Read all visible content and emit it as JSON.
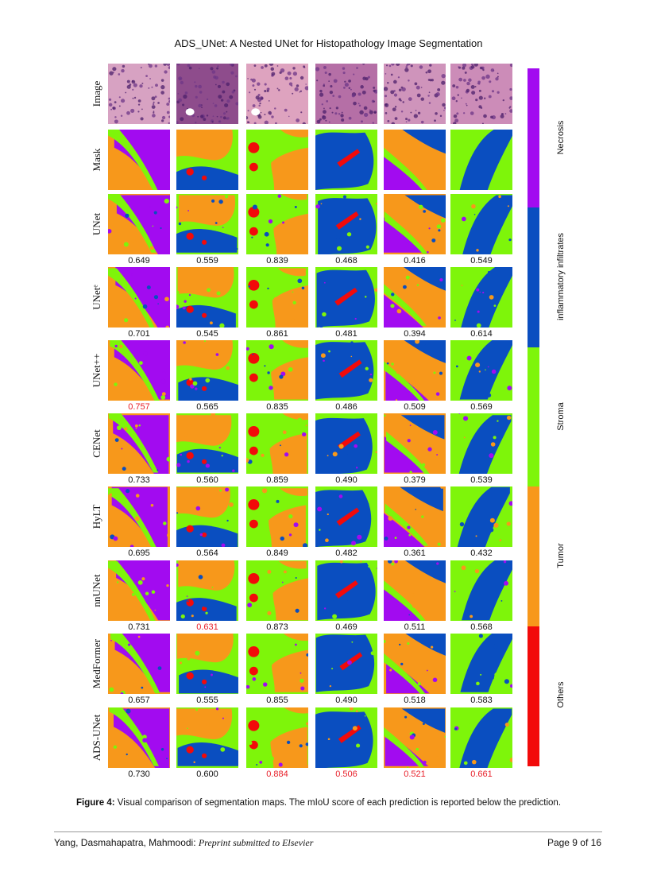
{
  "header": {
    "title": "ADS_UNet: A Nested UNet for Histopathology Image Segmentation"
  },
  "rows": [
    {
      "label": "Image",
      "type": "image"
    },
    {
      "label": "Mask",
      "type": "mask"
    },
    {
      "label": "UNet",
      "type": "pred",
      "scores": [
        "0.649",
        "0.559",
        "0.839",
        "0.468",
        "0.416",
        "0.549"
      ],
      "best": []
    },
    {
      "label": "UNetᵉ",
      "type": "pred",
      "scores": [
        "0.701",
        "0.545",
        "0.861",
        "0.481",
        "0.394",
        "0.614"
      ],
      "best": []
    },
    {
      "label": "UNet++",
      "type": "pred",
      "scores": [
        "0.757",
        "0.565",
        "0.835",
        "0.486",
        "0.509",
        "0.569"
      ],
      "best": [
        0
      ]
    },
    {
      "label": "CENet",
      "type": "pred",
      "scores": [
        "0.733",
        "0.560",
        "0.859",
        "0.490",
        "0.379",
        "0.539"
      ],
      "best": []
    },
    {
      "label": "HyLT",
      "type": "pred",
      "scores": [
        "0.695",
        "0.564",
        "0.849",
        "0.482",
        "0.361",
        "0.432"
      ],
      "best": []
    },
    {
      "label": "nnUNet",
      "type": "pred",
      "scores": [
        "0.731",
        "0.631",
        "0.873",
        "0.469",
        "0.511",
        "0.568"
      ],
      "best": [
        1
      ]
    },
    {
      "label": "MedFormer",
      "type": "pred",
      "scores": [
        "0.657",
        "0.555",
        "0.855",
        "0.490",
        "0.518",
        "0.583"
      ],
      "best": []
    },
    {
      "label": "ADS-UNet",
      "type": "pred",
      "scores": [
        "0.730",
        "0.600",
        "0.884",
        "0.506",
        "0.521",
        "0.661"
      ],
      "best": [
        2,
        3,
        4,
        5
      ]
    }
  ],
  "legend": [
    {
      "label": "Necrosis",
      "color": "#a20bf0"
    },
    {
      "label": "inflammatory infiltrates",
      "color": "#0a4ec0"
    },
    {
      "label": "Stroma",
      "color": "#7ef50a"
    },
    {
      "label": "Tumor",
      "color": "#f7981b"
    },
    {
      "label": "Others",
      "color": "#f20a0a"
    }
  ],
  "caption": {
    "label": "Figure 4:",
    "text": " Visual comparison of segmentation maps. The mIoU score of each prediction is reported below the prediction."
  },
  "footer": {
    "authors": "Yang, Dasmahapatra, Mahmoodi: ",
    "venue": "Preprint submitted to Elsevier",
    "page": "Page 9 of 16"
  }
}
